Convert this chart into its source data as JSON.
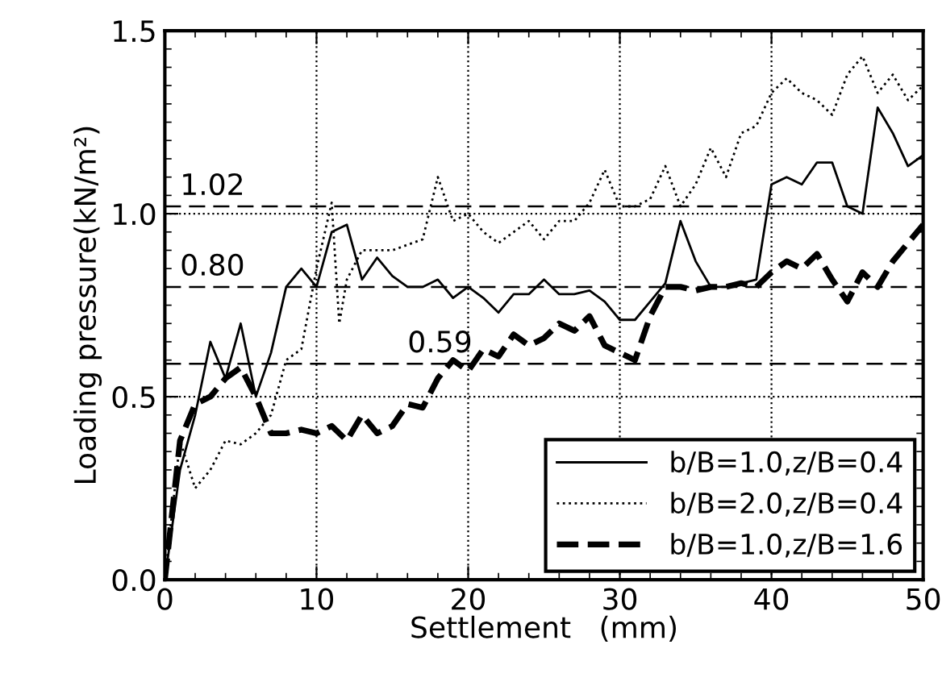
{
  "chart_data": {
    "type": "line",
    "xlabel": "Settlement   (mm)",
    "ylabel": "Loading pressure(kN/m²)",
    "xlim": [
      0,
      50
    ],
    "ylim": [
      0,
      1.5
    ],
    "xticks": [
      0,
      10,
      20,
      30,
      40,
      50
    ],
    "yticks": [
      {
        "value": 0,
        "label": "0.0"
      },
      0.5,
      {
        "value": 1,
        "label": "1.0"
      },
      1.5
    ],
    "grid": true,
    "legend": "bottom right",
    "ref_lines": [
      {
        "axis": "y",
        "value": 1.02,
        "label": "1.02",
        "line_style": "dashed",
        "color": "#000000"
      },
      {
        "axis": "y",
        "value": 0.8,
        "label": "0.80",
        "line_style": "dashed",
        "color": "#000000"
      },
      {
        "axis": "y",
        "value": 0.59,
        "label": "0.59",
        "line_style": "dashed",
        "color": "#000000"
      }
    ],
    "series": [
      {
        "name": "b/B=1.0,z/B=0.4",
        "color": "#000000",
        "line_style": "solid",
        "x": [
          0,
          1,
          2,
          3,
          4,
          5,
          6,
          7,
          8,
          9,
          10,
          11,
          12,
          13,
          14,
          15,
          16,
          17,
          18,
          19,
          20,
          21,
          22,
          23,
          24,
          25,
          26,
          27,
          28,
          29,
          30,
          31,
          32,
          33,
          34,
          35,
          36,
          37,
          38,
          39,
          40,
          41,
          42,
          43,
          44,
          45,
          46,
          47,
          48,
          49,
          50
        ],
        "values": [
          0,
          0.3,
          0.45,
          0.65,
          0.55,
          0.7,
          0.5,
          0.62,
          0.8,
          0.85,
          0.8,
          0.95,
          0.97,
          0.82,
          0.88,
          0.83,
          0.8,
          0.8,
          0.82,
          0.77,
          0.8,
          0.77,
          0.73,
          0.78,
          0.78,
          0.82,
          0.78,
          0.78,
          0.79,
          0.76,
          0.71,
          0.71,
          0.76,
          0.81,
          0.98,
          0.87,
          0.8,
          0.8,
          0.81,
          0.82,
          1.08,
          1.1,
          1.08,
          1.14,
          1.14,
          1.02,
          1.0,
          1.29,
          1.22,
          1.13,
          1.16
        ]
      },
      {
        "name": "b/B=2.0,z/B=0.4",
        "color": "#000000",
        "line_style": "dotted",
        "x": [
          0,
          1,
          2,
          3,
          4,
          5,
          6,
          7,
          8,
          9,
          10,
          11,
          11.5,
          12,
          13,
          15,
          17,
          18,
          19,
          20,
          21,
          22,
          23,
          24,
          25,
          26,
          27,
          28,
          29,
          30,
          31,
          32,
          33,
          34,
          35,
          36,
          37,
          38,
          39,
          40,
          41,
          42,
          43,
          44,
          45,
          46,
          47,
          48,
          49,
          50
        ],
        "values": [
          0,
          0.38,
          0.25,
          0.3,
          0.38,
          0.37,
          0.4,
          0.45,
          0.6,
          0.63,
          0.85,
          1.03,
          0.7,
          0.82,
          0.9,
          0.9,
          0.93,
          1.1,
          0.98,
          1.0,
          0.95,
          0.92,
          0.95,
          0.98,
          0.93,
          0.98,
          0.98,
          1.03,
          1.12,
          1.02,
          1.02,
          1.04,
          1.13,
          1.02,
          1.08,
          1.18,
          1.1,
          1.22,
          1.24,
          1.33,
          1.37,
          1.33,
          1.31,
          1.27,
          1.38,
          1.43,
          1.33,
          1.38,
          1.31,
          1.35
        ]
      },
      {
        "name": "b/B=1.0,z/B=1.6",
        "color": "#000000",
        "line_style": "dashed",
        "x": [
          0,
          1,
          2,
          3,
          4,
          5,
          6,
          7,
          8,
          9,
          10,
          11,
          12,
          13,
          14,
          15,
          16,
          17,
          18,
          19,
          20,
          21,
          22,
          23,
          24,
          25,
          26,
          27,
          28,
          29,
          30,
          31,
          32,
          33,
          34,
          35,
          36,
          37,
          38,
          39,
          40,
          41,
          42,
          43,
          44,
          45,
          46,
          47,
          48,
          49,
          50
        ],
        "values": [
          0,
          0.38,
          0.48,
          0.5,
          0.55,
          0.58,
          0.5,
          0.4,
          0.4,
          0.41,
          0.4,
          0.42,
          0.38,
          0.45,
          0.4,
          0.42,
          0.48,
          0.47,
          0.55,
          0.6,
          0.57,
          0.63,
          0.61,
          0.67,
          0.64,
          0.66,
          0.7,
          0.68,
          0.72,
          0.64,
          0.62,
          0.6,
          0.72,
          0.8,
          0.8,
          0.79,
          0.8,
          0.8,
          0.81,
          0.8,
          0.84,
          0.87,
          0.85,
          0.89,
          0.82,
          0.76,
          0.84,
          0.8,
          0.87,
          0.92,
          0.97
        ]
      }
    ]
  }
}
